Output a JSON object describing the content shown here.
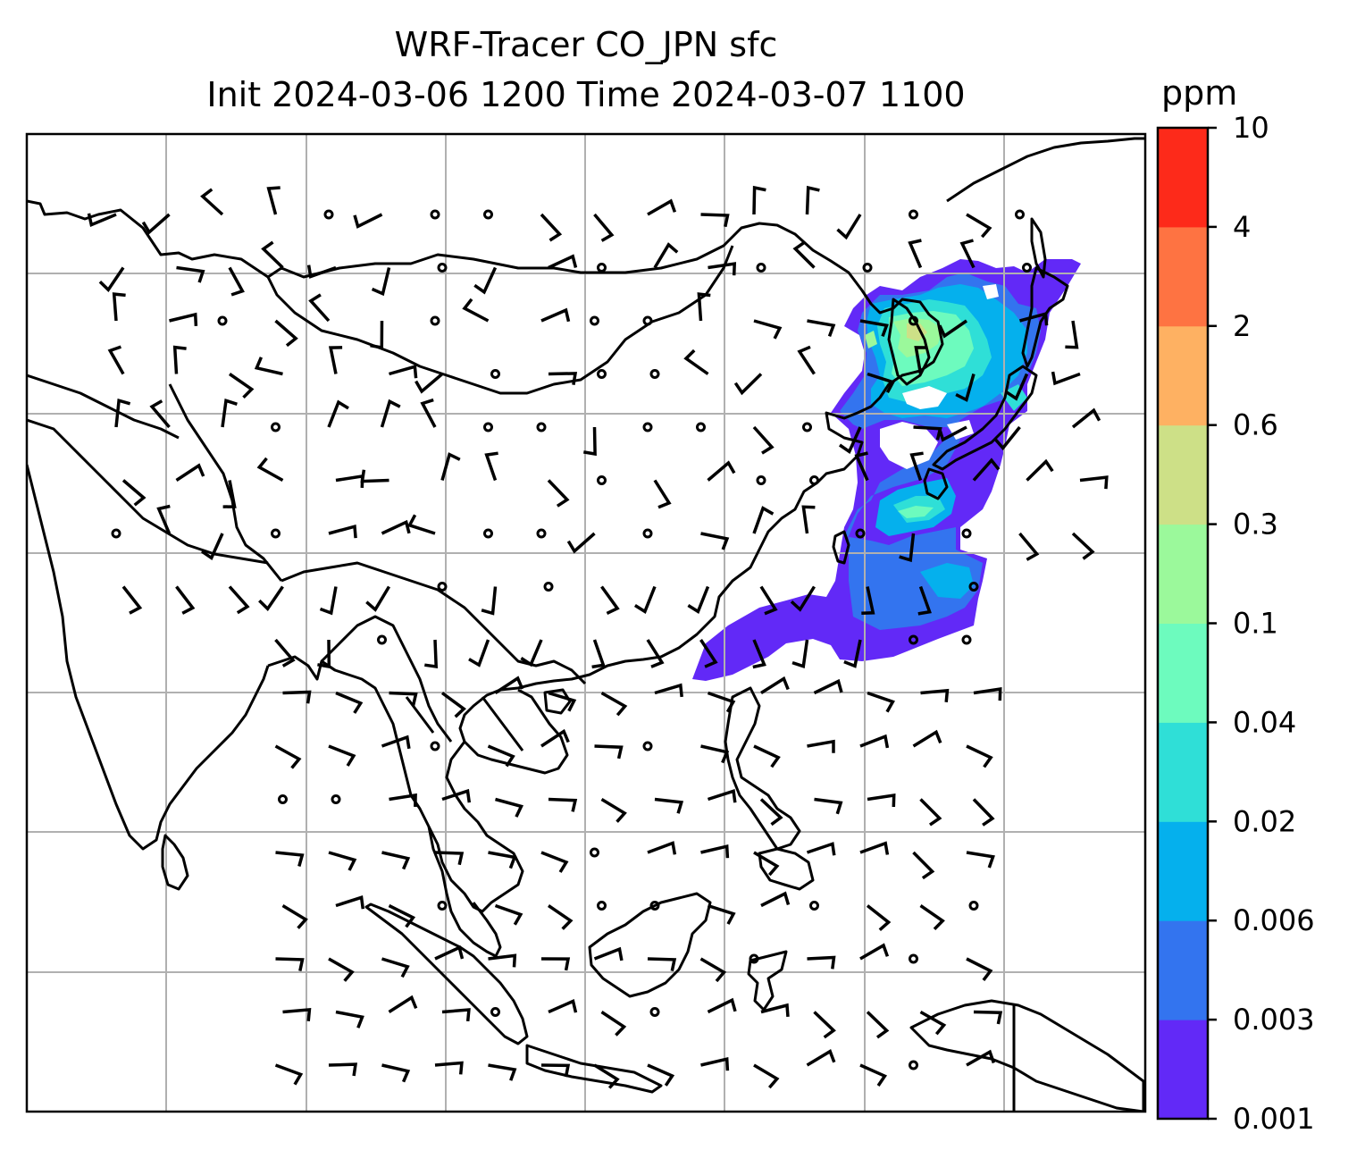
{
  "title": {
    "line1": "WRF-Tracer CO_JPN sfc",
    "line2": "Init 2024-03-06 1200 Time 2024-03-07 1100"
  },
  "colorbar": {
    "unit": "ppm",
    "levels": [
      "0.001",
      "0.003",
      "0.006",
      "0.02",
      "0.04",
      "0.1",
      "0.3",
      "0.6",
      "2",
      "4",
      "10"
    ],
    "colors": [
      "#6229f7",
      "#3374ef",
      "#05b0ed",
      "#2fdfd7",
      "#6dfbbe",
      "#9bf99b",
      "#cde087",
      "#feb162",
      "#fe7342",
      "#fd2a1a"
    ]
  },
  "map": {
    "gridline_color": "#b0b0b0",
    "coastline_color": "#000000",
    "tracer_field": "CO_JPN"
  }
}
